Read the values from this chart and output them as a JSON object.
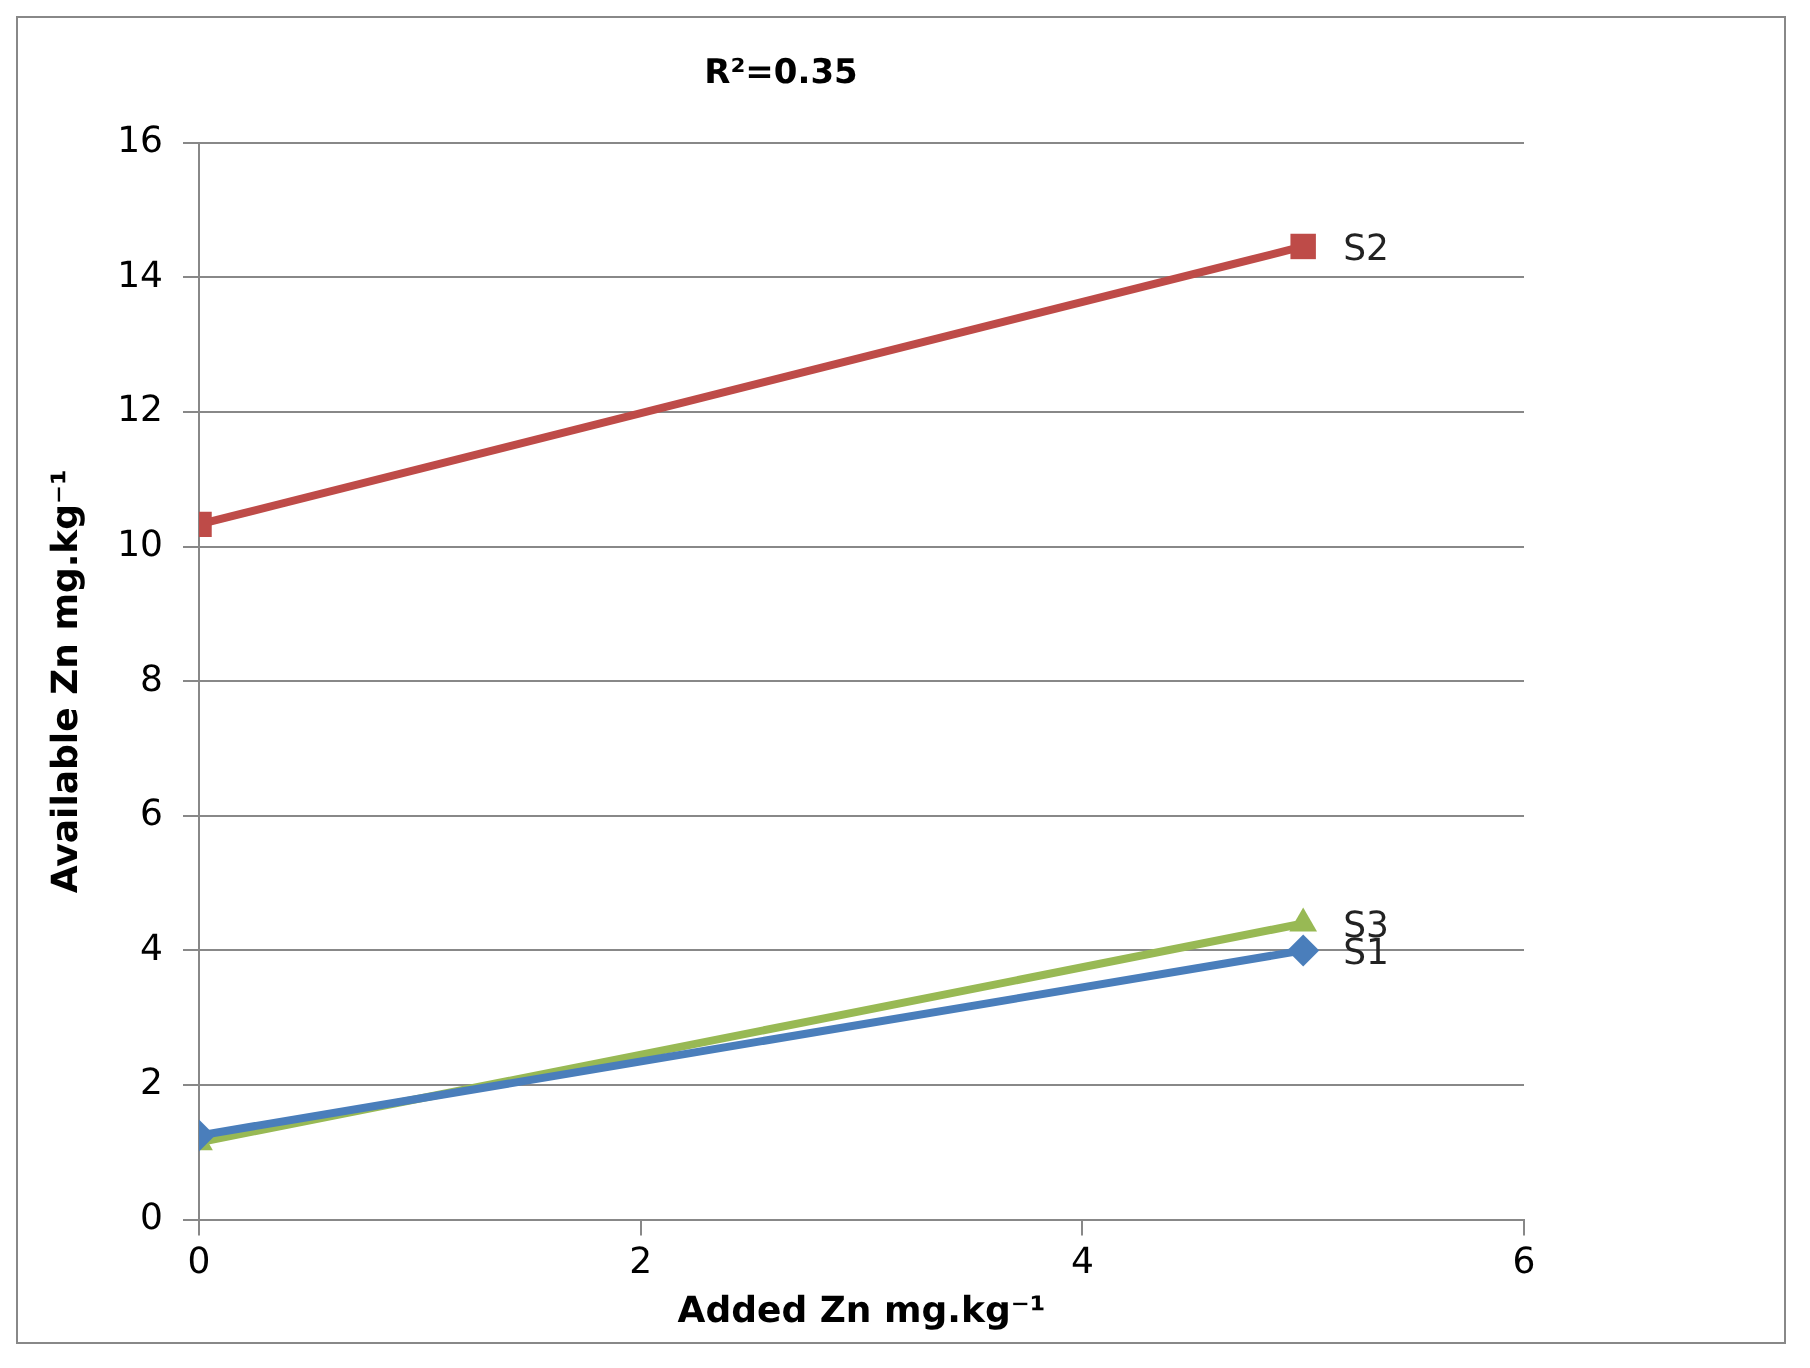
{
  "chart_data": {
    "type": "line",
    "title": "R²=0.35",
    "xlabel": "Added Zn mg.kg⁻¹",
    "ylabel": "Available Zn mg.kg⁻¹",
    "x": [
      0,
      5
    ],
    "series": [
      {
        "name": "S1",
        "color": "#4a7ebb",
        "values": [
          1.25,
          4.0
        ],
        "marker": "diamond"
      },
      {
        "name": "S2",
        "color": "#be4b48",
        "values": [
          10.33,
          14.46
        ],
        "marker": "square"
      },
      {
        "name": "S3",
        "color": "#98b954",
        "values": [
          1.15,
          4.4
        ],
        "marker": "triangle"
      }
    ],
    "xlim": [
      0,
      6
    ],
    "xticks": [
      0,
      2,
      4,
      6
    ],
    "ylim": [
      0,
      16
    ],
    "yticks": [
      0,
      2,
      4,
      6,
      8,
      10,
      12,
      14,
      16
    ],
    "grid": "y",
    "legend": false,
    "line_style": "solid"
  }
}
